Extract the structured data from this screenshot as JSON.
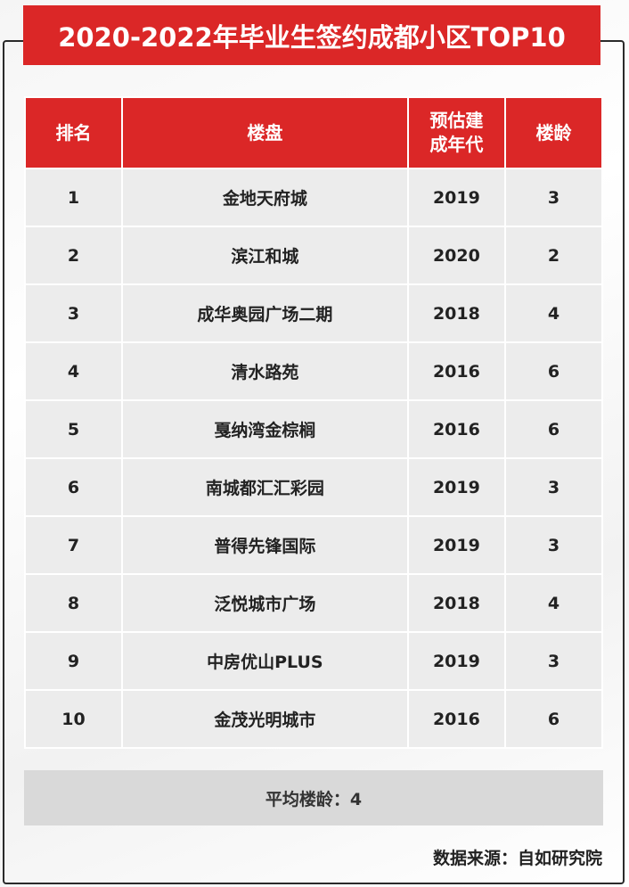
{
  "title": "2020-2022年毕业生签约成都小区TOP10",
  "headers": {
    "rank": "排名",
    "name": "楼盘",
    "year_line1": "预估建",
    "year_line2": "成年代",
    "age": "楼龄"
  },
  "rows": [
    {
      "rank": "1",
      "name": "金地天府城",
      "year": "2019",
      "age": "3"
    },
    {
      "rank": "2",
      "name": "滨江和城",
      "year": "2020",
      "age": "2"
    },
    {
      "rank": "3",
      "name": "成华奥园广场二期",
      "year": "2018",
      "age": "4"
    },
    {
      "rank": "4",
      "name": "清水路苑",
      "year": "2016",
      "age": "6"
    },
    {
      "rank": "5",
      "name": "戛纳湾金棕榈",
      "year": "2016",
      "age": "6"
    },
    {
      "rank": "6",
      "name": "南城都汇汇彩园",
      "year": "2019",
      "age": "3"
    },
    {
      "rank": "7",
      "name": "普得先锋国际",
      "year": "2019",
      "age": "3"
    },
    {
      "rank": "8",
      "name": "泛悦城市广场",
      "year": "2018",
      "age": "4"
    },
    {
      "rank": "9",
      "name": "中房优山PLUS",
      "year": "2019",
      "age": "3"
    },
    {
      "rank": "10",
      "name": "金茂光明城市",
      "year": "2016",
      "age": "6"
    }
  ],
  "summary": "平均楼龄：4",
  "source": "数据来源：自如研究院",
  "colors": {
    "accent_red": "#db2727",
    "row_bg": "#ececec",
    "summary_bg": "#d9d9d9"
  }
}
